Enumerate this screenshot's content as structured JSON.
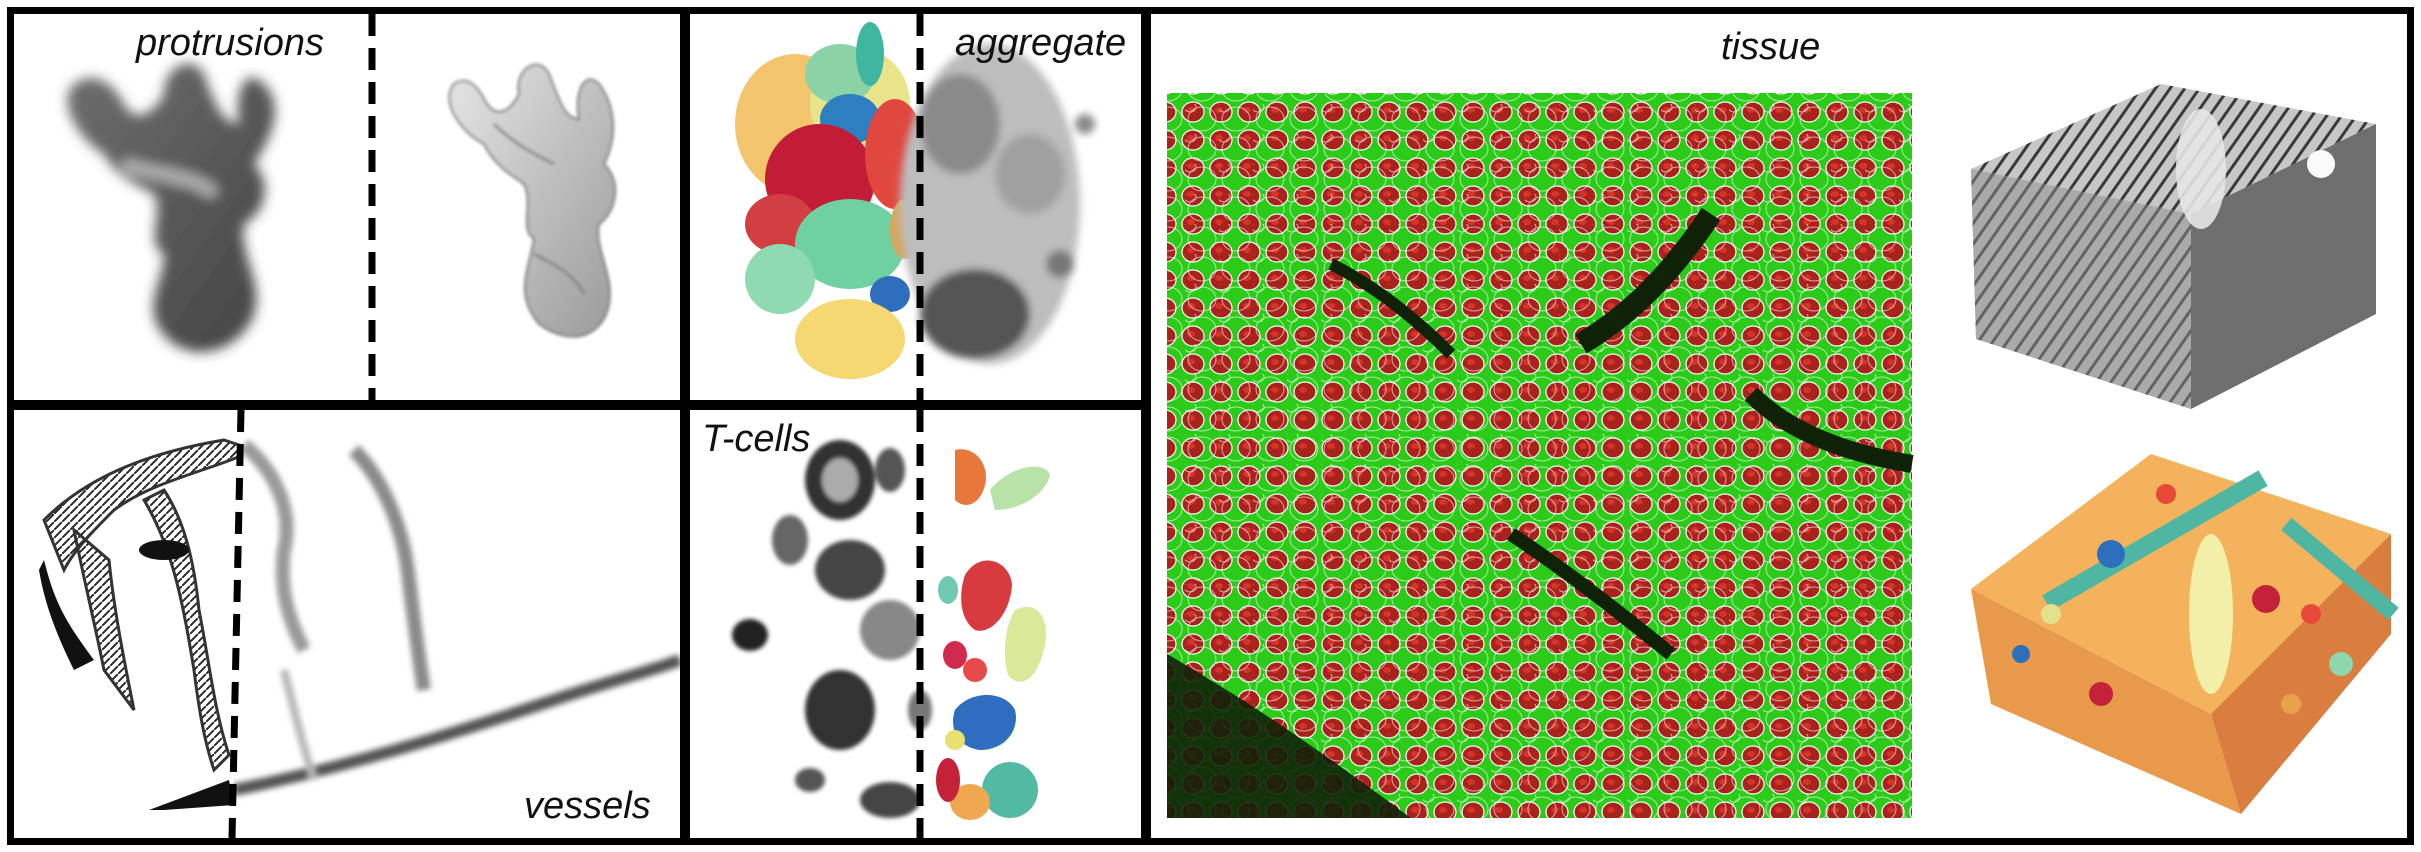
{
  "labels": {
    "protrusions": "protrusions",
    "aggregate": "aggregate",
    "tissue": "tissue",
    "t_cells": "T-cells",
    "vessels": "vessels"
  },
  "colors": {
    "border": "#000000",
    "tissue_background": "#0a2a06",
    "membrane_green": "#39d21c",
    "nucleus_red": "#c0221c",
    "outline_white": "#ffffff"
  }
}
